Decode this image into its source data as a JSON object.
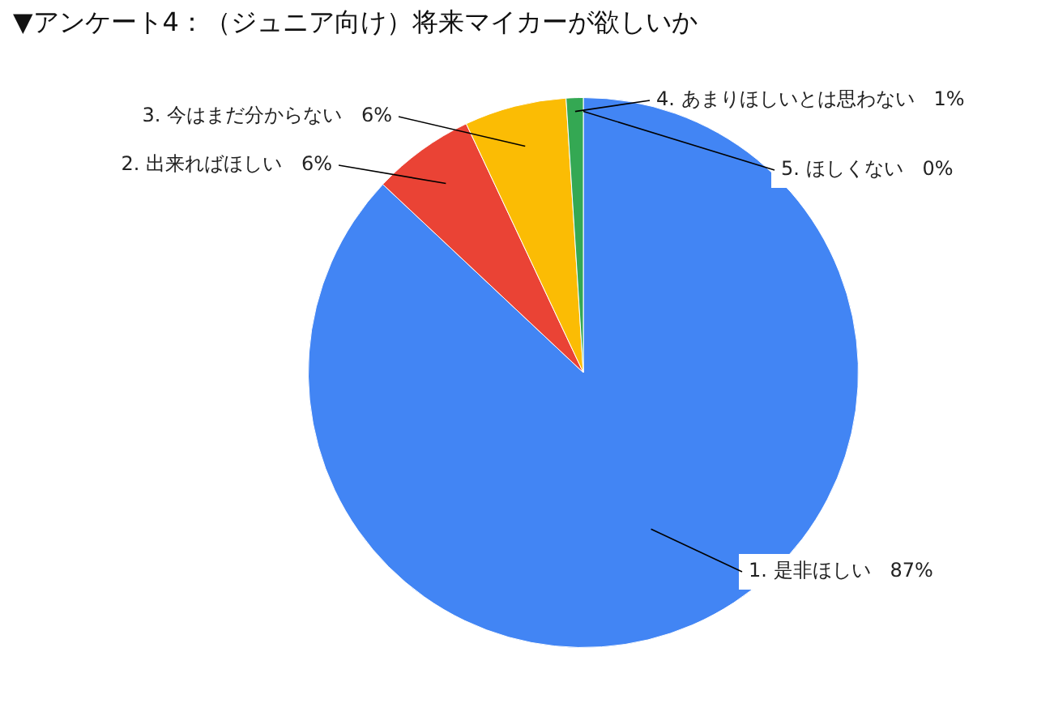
{
  "chart_data": {
    "type": "pie",
    "title": "▼アンケート4：（ジュニア向け）将来マイカーが欲しいか",
    "categories": [
      "1. 是非ほしい",
      "2. 出来ればほしい",
      "3. 今はまだ分からない",
      "4. あまりほしいとは思わない",
      "5. ほしくない"
    ],
    "values": [
      87,
      6,
      6,
      1,
      0
    ],
    "value_labels": [
      "87%",
      "6%",
      "6%",
      "1%",
      "0%"
    ],
    "colors": [
      "#4285f4",
      "#ea4335",
      "#fbbc04",
      "#34a853",
      "#ff6d01"
    ],
    "legend": false
  }
}
